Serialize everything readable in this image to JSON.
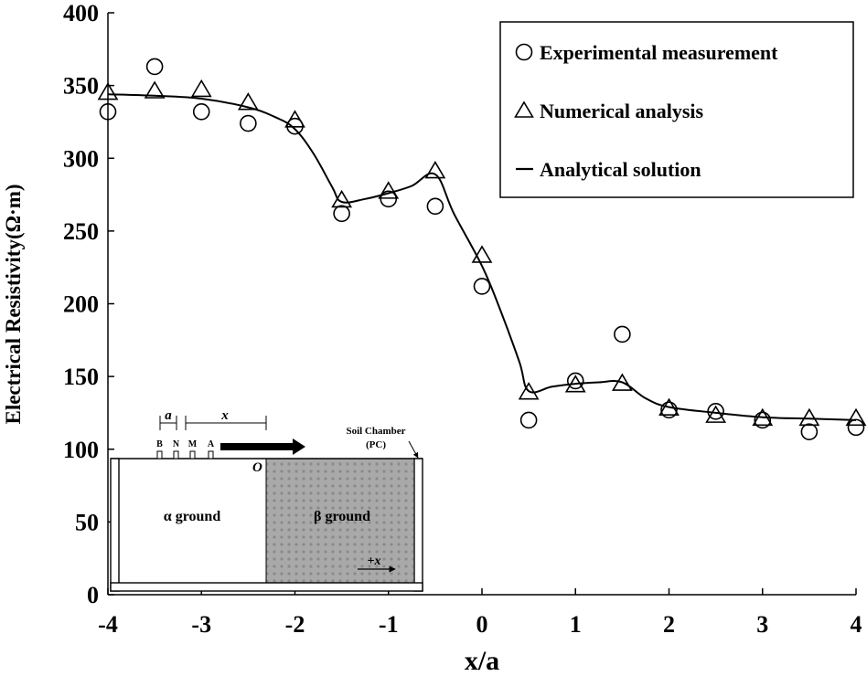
{
  "chart_data": {
    "type": "scatter",
    "xlabel": "x/a",
    "ylabel": "Electrical Resistivity(Ω·m)",
    "xlim": [
      -4,
      4
    ],
    "ylim": [
      0,
      400
    ],
    "xticks": [
      -4,
      -3,
      -2,
      -1,
      0,
      1,
      2,
      3,
      4
    ],
    "yticks": [
      0,
      50,
      100,
      150,
      200,
      250,
      300,
      350,
      400
    ],
    "grid": false,
    "legend_position": "top-right",
    "series": [
      {
        "name": "Experimental measurement",
        "marker": "circle",
        "x": [
          -4,
          -3.5,
          -3,
          -2.5,
          -2,
          -1.5,
          -1,
          -0.5,
          0,
          0.5,
          1,
          1.5,
          2,
          2.5,
          3,
          3.5,
          4
        ],
        "y": [
          332,
          363,
          332,
          324,
          322,
          262,
          272,
          267,
          212,
          120,
          147,
          179,
          127,
          126,
          120,
          112,
          115
        ]
      },
      {
        "name": "Numerical analysis",
        "marker": "triangle",
        "x": [
          -4,
          -3.5,
          -3,
          -2.5,
          -2,
          -1.5,
          -1,
          -0.5,
          0,
          0.5,
          1,
          1.5,
          2,
          2.5,
          3,
          3.5,
          4
        ],
        "y": [
          345,
          346,
          347,
          338,
          326,
          271,
          277,
          291,
          233,
          139,
          144,
          145,
          128,
          123,
          121,
          121,
          121
        ]
      },
      {
        "name": "Analytical solution",
        "marker": "line",
        "x": [
          -4,
          -3.5,
          -3,
          -2.5,
          -2.2,
          -2,
          -1.8,
          -1.6,
          -1.5,
          -1.25,
          -1,
          -0.75,
          -0.5,
          -0.3,
          0,
          0.2,
          0.4,
          0.5,
          0.75,
          1,
          1.25,
          1.5,
          1.75,
          2,
          2.5,
          3,
          3.5,
          4
        ],
        "y": [
          344,
          343,
          341,
          335,
          328,
          320,
          303,
          280,
          270,
          272,
          276,
          281,
          289,
          262,
          226,
          195,
          160,
          140,
          143,
          145,
          146,
          146,
          135,
          129,
          125,
          122,
          121,
          120
        ]
      }
    ]
  },
  "inset": {
    "electrodes": [
      "B",
      "N",
      "M",
      "A"
    ],
    "spacing_label": "a",
    "distance_label": "x",
    "origin_label": "O",
    "chamber_label_1": "Soil Chamber",
    "chamber_label_2": "(PC)",
    "alpha_label": "α ground",
    "beta_label": "β ground",
    "direction_label": "+x"
  }
}
